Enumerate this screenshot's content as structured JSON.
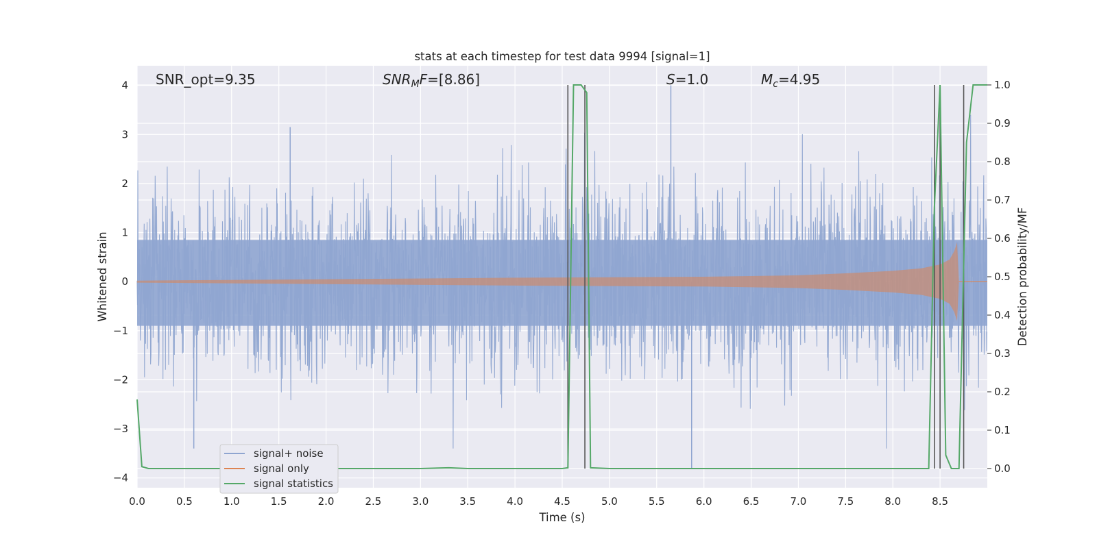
{
  "chart_data": {
    "type": "line",
    "title": "stats at each timestep for test data 9994 [signal=1]",
    "xlabel": "Time (s)",
    "ylabel": "Whitened strain",
    "y2label": "Detection probability/MF",
    "xlim": [
      0,
      9
    ],
    "ylim": [
      -4.2,
      4.4
    ],
    "y2lim": [
      -0.05,
      1.05
    ],
    "xticks": [
      "0.0",
      "0.5",
      "1.0",
      "1.5",
      "2.0",
      "2.5",
      "3.0",
      "3.5",
      "4.0",
      "4.5",
      "5.0",
      "5.5",
      "6.0",
      "6.5",
      "7.0",
      "7.5",
      "8.0",
      "8.5"
    ],
    "yticks": [
      "4",
      "3",
      "2",
      "1",
      "0",
      "−1",
      "−2",
      "−3",
      "−4"
    ],
    "y2ticks": [
      "1.0",
      "0.9",
      "0.8",
      "0.7",
      "0.6",
      "0.5",
      "0.4",
      "0.3",
      "0.2",
      "0.1",
      "0.0"
    ],
    "grid": true,
    "legend_position": "lower-left",
    "annotations": {
      "snr_opt": "SNR_opt=9.35",
      "snr_mf_var": "SNR",
      "snr_mf_sub": "M",
      "snr_mf_var2": "F",
      "snr_mf_value": "=[8.86]",
      "s_var": "S",
      "s_value": "=1.0",
      "mc_var": "M",
      "mc_sub": "c",
      "mc_value": "=4.95"
    },
    "series": [
      {
        "name": "signal+ noise",
        "color": "#8fa5d0",
        "description_values": "noisy strain, mostly within [-1.5, 1.6], spikes to about 4.0 at t=5.65 and -3.8 at t=5.87"
      },
      {
        "name": "signal only",
        "color": "#dd8452",
        "envelope": {
          "x": [
            0.0,
            2.0,
            4.0,
            6.0,
            7.0,
            7.5,
            8.0,
            8.3,
            8.5,
            8.6,
            8.65,
            8.68,
            8.7
          ],
          "amp": [
            0.02,
            0.05,
            0.08,
            0.1,
            0.13,
            0.17,
            0.22,
            0.27,
            0.35,
            0.45,
            0.62,
            0.8,
            0.0
          ]
        }
      },
      {
        "name": "signal statistics",
        "color": "#55a868",
        "x": [
          0.0,
          0.05,
          0.12,
          0.5,
          1.0,
          2.0,
          3.0,
          3.3,
          3.5,
          4.0,
          4.5,
          4.56,
          4.62,
          4.7,
          4.76,
          4.8,
          5.0,
          6.0,
          7.0,
          8.0,
          8.38,
          8.44,
          8.5,
          8.56,
          8.62,
          8.7,
          8.78,
          8.85,
          8.9,
          9.0
        ],
        "y": [
          0.18,
          0.005,
          0.0,
          0.0,
          0.0,
          0.0,
          0.0,
          0.002,
          0.0,
          0.0,
          0.0,
          0.002,
          1.0,
          1.0,
          0.98,
          0.002,
          0.0,
          0.0,
          0.0,
          0.0,
          0.0,
          0.68,
          1.0,
          0.035,
          0.0,
          0.0,
          0.85,
          1.0,
          1.0,
          1.0
        ]
      }
    ],
    "vlines": [
      4.56,
      4.74,
      8.44,
      8.5,
      8.75
    ]
  }
}
